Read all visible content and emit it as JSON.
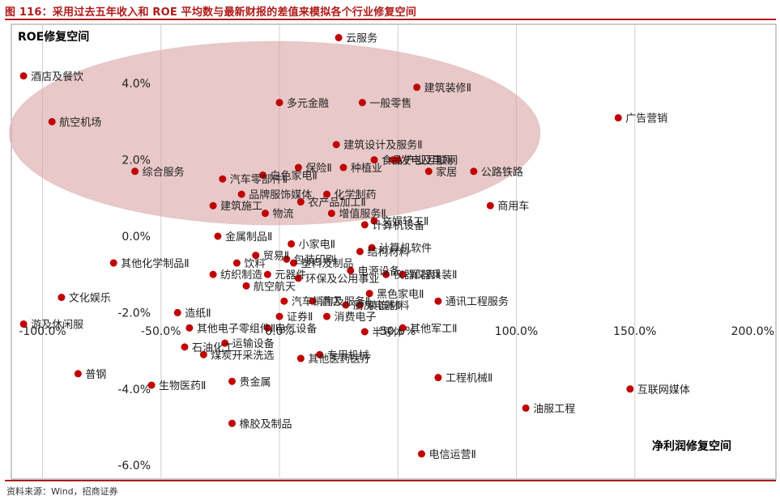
{
  "figure": {
    "title": "图 116：采用过去五年收入和 ROE 平均数与最新财报的差值来模拟各个行业修复空间",
    "source": "资料来源：Wind，招商证券"
  },
  "chart_data": {
    "type": "scatter",
    "title": "",
    "xlabel": "净利润修复空间",
    "ylabel": "ROE修复空间",
    "xlim": [
      -110,
      200
    ],
    "ylim": [
      -6,
      5
    ],
    "xticks": [
      "-100.0%",
      "-50.0%",
      "0.0%",
      "50.0%",
      "100.0%",
      "150.0%",
      "200.0%"
    ],
    "yticks": [
      "-6.0%",
      "-4.0%",
      "-2.0%",
      "0.0%",
      "2.0%",
      "4.0%"
    ],
    "grid": "vertical",
    "point_color": "#c00000",
    "highlight_color": "#d9a3a3",
    "highlight_region": {
      "center": [
        -2,
        2.7
      ],
      "rx": 112,
      "ry": 2.4
    },
    "points": [
      {
        "name": "云服务",
        "x": 25,
        "y": 5.2
      },
      {
        "name": "建筑装修Ⅱ",
        "x": 58,
        "y": 3.9
      },
      {
        "name": "一般零售",
        "x": 35,
        "y": 3.5
      },
      {
        "name": "多元金融",
        "x": 0,
        "y": 3.5
      },
      {
        "name": "酒店及餐饮",
        "x": -108,
        "y": 4.2
      },
      {
        "name": "航空机场",
        "x": -96,
        "y": 3.0
      },
      {
        "name": "广告营销",
        "x": 143,
        "y": 3.1
      },
      {
        "name": "建筑设计及服务Ⅱ",
        "x": 24,
        "y": 2.4
      },
      {
        "name": "汽车零部件Ⅱ",
        "x": -24,
        "y": 1.5
      },
      {
        "name": "食品",
        "x": 40,
        "y": 2.0
      },
      {
        "name": "产业互联网",
        "x": 50,
        "y": 2.0
      },
      {
        "name": "保险Ⅱ",
        "x": 8,
        "y": 1.8
      },
      {
        "name": "发电及电网",
        "x": 48,
        "y": 2.0
      },
      {
        "name": "种植业",
        "x": 27,
        "y": 1.8
      },
      {
        "name": "综合服务",
        "x": -61,
        "y": 1.7
      },
      {
        "name": "家居",
        "x": 63,
        "y": 1.7
      },
      {
        "name": "公路铁路",
        "x": 82,
        "y": 1.7
      },
      {
        "name": "白色家电Ⅱ",
        "x": -7,
        "y": 1.6
      },
      {
        "name": "品牌服饰媒体",
        "x": -16,
        "y": 1.1
      },
      {
        "name": "化学制药",
        "x": 20,
        "y": 1.1
      },
      {
        "name": "农产品加工Ⅱ",
        "x": 9,
        "y": 0.9
      },
      {
        "name": "商用车",
        "x": 89,
        "y": 0.8
      },
      {
        "name": "建筑施工",
        "x": -28,
        "y": 0.8
      },
      {
        "name": "物流",
        "x": -6,
        "y": 0.6
      },
      {
        "name": "增值服务Ⅱ",
        "x": 22,
        "y": 0.6
      },
      {
        "name": "计算机设备",
        "x": 36,
        "y": 0.3
      },
      {
        "name": "文娱轻工Ⅱ",
        "x": 40,
        "y": 0.4
      },
      {
        "name": "金属制品Ⅱ",
        "x": -26,
        "y": 0.0
      },
      {
        "name": "小家电Ⅱ",
        "x": 5,
        "y": -0.2
      },
      {
        "name": "计算机软件",
        "x": 39,
        "y": -0.3
      },
      {
        "name": "结构材料",
        "x": 34,
        "y": -0.4
      },
      {
        "name": "贸易Ⅱ",
        "x": -10,
        "y": -0.5
      },
      {
        "name": "包装印刷",
        "x": 3,
        "y": -0.6
      },
      {
        "name": "其他化学制品Ⅱ",
        "x": -70,
        "y": -0.7
      },
      {
        "name": "饮料",
        "x": -18,
        "y": -0.7
      },
      {
        "name": "塑料及制品",
        "x": 6,
        "y": -0.7
      },
      {
        "name": "电源设备",
        "x": 30,
        "y": -0.9
      },
      {
        "name": "仪器仪表Ⅱ",
        "x": 45,
        "y": -1.0
      },
      {
        "name": "军器兵装Ⅱ",
        "x": 52,
        "y": -1.0
      },
      {
        "name": "纺织制造",
        "x": -28,
        "y": -1.0
      },
      {
        "name": "元器件",
        "x": -5,
        "y": -1.0
      },
      {
        "name": "环保及公用事业",
        "x": 8,
        "y": -1.1
      },
      {
        "name": "航空航天",
        "x": -14,
        "y": -1.3
      },
      {
        "name": "黑色家电Ⅱ",
        "x": 38,
        "y": -1.5
      },
      {
        "name": "文化娱乐",
        "x": -92,
        "y": -1.6
      },
      {
        "name": "汽车销售及服务Ⅱ",
        "x": 2,
        "y": -1.7
      },
      {
        "name": "通讯工程服务",
        "x": 67,
        "y": -1.7
      },
      {
        "name": "酒店",
        "x": 14,
        "y": -1.7
      },
      {
        "name": "厨房电器Ⅱ",
        "x": 28,
        "y": -1.8
      },
      {
        "name": "装饰材料",
        "x": 34,
        "y": -1.8
      },
      {
        "name": "造纸Ⅱ",
        "x": -43,
        "y": -2.0
      },
      {
        "name": "证券Ⅱ",
        "x": 0,
        "y": -2.1
      },
      {
        "name": "消费电子",
        "x": 20,
        "y": -2.1
      },
      {
        "name": "游及休闲服",
        "x": -108,
        "y": -2.3
      },
      {
        "name": "其他电子零组件Ⅱ",
        "x": -38,
        "y": -2.4
      },
      {
        "name": "电气设备",
        "x": -5,
        "y": -2.4
      },
      {
        "name": "半导体",
        "x": 36,
        "y": -2.5
      },
      {
        "name": "其他军工Ⅱ",
        "x": 52,
        "y": -2.4
      },
      {
        "name": "石油化工",
        "x": -40,
        "y": -2.9
      },
      {
        "name": "运输设备",
        "x": -23,
        "y": -2.8
      },
      {
        "name": "专用机械",
        "x": 17,
        "y": -3.1
      },
      {
        "name": "其他医药医疗",
        "x": 9,
        "y": -3.2
      },
      {
        "name": "普钢",
        "x": -85,
        "y": -3.6
      },
      {
        "name": "煤炭开采洗选",
        "x": -32,
        "y": -3.1
      },
      {
        "name": "工程机械Ⅱ",
        "x": 67,
        "y": -3.7
      },
      {
        "name": "贵金属",
        "x": -20,
        "y": -3.8
      },
      {
        "name": "互联网媒体",
        "x": 148,
        "y": -4.0
      },
      {
        "name": "生物医药Ⅱ",
        "x": -54,
        "y": -3.9
      },
      {
        "name": "油服工程",
        "x": 104,
        "y": -4.5
      },
      {
        "name": "橡胶及制品",
        "x": -20,
        "y": -4.9
      },
      {
        "name": "电信运营Ⅱ",
        "x": 60,
        "y": -5.7
      }
    ]
  }
}
